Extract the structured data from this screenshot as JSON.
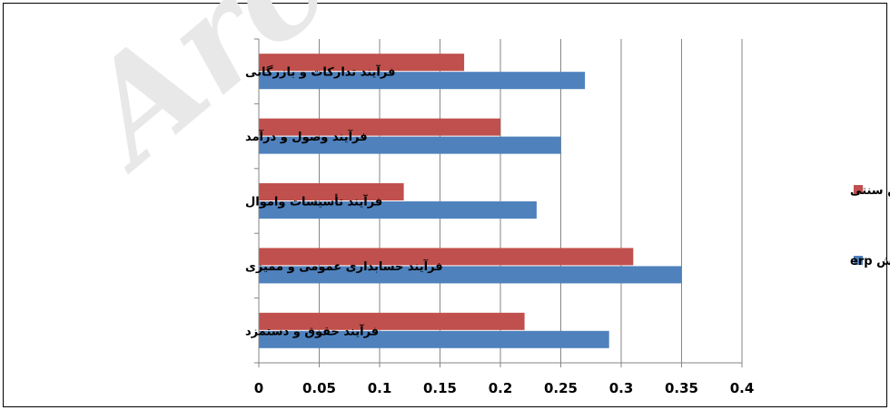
{
  "watermark": {
    "text": "Archi"
  },
  "chart_data": {
    "type": "bar",
    "orientation": "horizontal",
    "categories": [
      "فرآیند تدارکات و بازرگانی",
      "فرآیند وصول و درآمد",
      "فرآیند تأسیسات واموال",
      "فرآیند حسابداری عمومی و ممیزی",
      "فرآیند حقوق و دستمزد"
    ],
    "series": [
      {
        "name": "روش سنتی",
        "color": "#c0504d",
        "values": [
          0.17,
          0.2,
          0.12,
          0.31,
          0.22
        ]
      },
      {
        "name": "روش erp",
        "color": "#4f81bd",
        "values": [
          0.27,
          0.25,
          0.23,
          0.35,
          0.29
        ]
      }
    ],
    "xlim": [
      0,
      0.4
    ],
    "xticks": [
      "0",
      "0.05",
      "0.1",
      "0.15",
      "0.2",
      "0.25",
      "0.3",
      "0.35",
      "0.4"
    ],
    "grid": "vertical",
    "legend": "right"
  }
}
